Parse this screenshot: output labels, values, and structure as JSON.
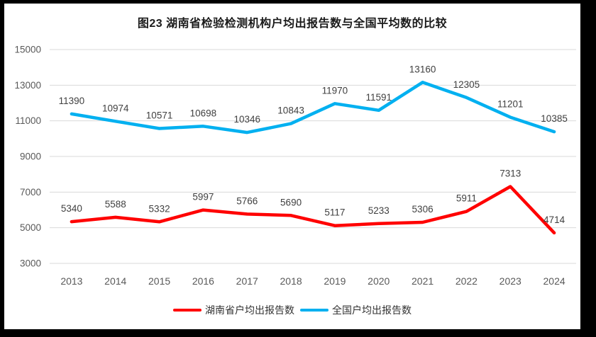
{
  "title": "图23  湖南省检验检测机构户均出报告数与全国平均数的比较",
  "chart_data": {
    "type": "line",
    "title": "图23  湖南省检验检测机构户均出报告数与全国平均数的比较",
    "categories": [
      "2013",
      "2014",
      "2015",
      "2016",
      "2017",
      "2018",
      "2019",
      "2020",
      "2021",
      "2022",
      "2023",
      "2024"
    ],
    "series": [
      {
        "name": "湖南省户均出报告数",
        "color": "#FF0000",
        "values": [
          5340,
          5588,
          5332,
          5997,
          5766,
          5690,
          5117,
          5233,
          5306,
          5911,
          7313,
          4714
        ]
      },
      {
        "name": "全国户均出报告数",
        "color": "#00B0F0",
        "values": [
          11390,
          10974,
          10571,
          10698,
          10346,
          10843,
          11970,
          11591,
          13160,
          12305,
          11201,
          10385
        ]
      }
    ],
    "ylim": [
      3000,
      15000
    ],
    "ytick_step": 2000,
    "yticks": [
      3000,
      5000,
      7000,
      9000,
      11000,
      13000,
      15000
    ],
    "grid": "horizontal",
    "data_labels": true,
    "legend_position": "bottom",
    "colors": {
      "gridline": "#D9D9D9",
      "tick_label": "#595959",
      "data_label": "#404040",
      "frame": "#000000",
      "background": "#FFFFFF"
    }
  }
}
